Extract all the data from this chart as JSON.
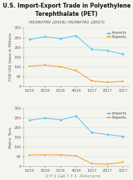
{
  "title": "U.S. Import-Export Trade in Polyethylene\nTerephthalate (PET)",
  "subtitle": "HS390760 (2016) HS390761 (2017)",
  "x_labels": [
    "1Q16",
    "2Q16",
    "3Q16",
    "4Q16",
    "1Q17",
    "2Q17",
    "3Q17"
  ],
  "top_chart": {
    "ylabel": "FOB US$ Value in Millions",
    "imports": [
      240,
      255,
      245,
      260,
      190,
      183,
      165
    ],
    "exports": [
      103,
      108,
      100,
      80,
      27,
      20,
      25
    ],
    "ylim": [
      0,
      300
    ],
    "yticks": [
      0,
      50,
      100,
      150,
      200,
      250,
      300
    ]
  },
  "bottom_chart": {
    "ylabel": "Metric Tons",
    "imports": [
      238,
      250,
      240,
      260,
      175,
      165,
      155
    ],
    "exports": [
      60,
      60,
      60,
      55,
      15,
      12,
      22
    ],
    "ylim": [
      0,
      300
    ],
    "yticks": [
      0,
      50,
      100,
      150,
      200,
      250,
      300
    ]
  },
  "imports_color": "#5bc8f0",
  "exports_color": "#f5a030",
  "background_color": "#f5f5f0",
  "grid_color": "#cccccc",
  "watermark": "D E S C▴R T E S  Datamyne",
  "title_fontsize": 5.8,
  "subtitle_fontsize": 4.4,
  "axis_label_fontsize": 4.0,
  "tick_fontsize": 3.8,
  "legend_fontsize": 4.0,
  "watermark_fontsize": 4.2
}
